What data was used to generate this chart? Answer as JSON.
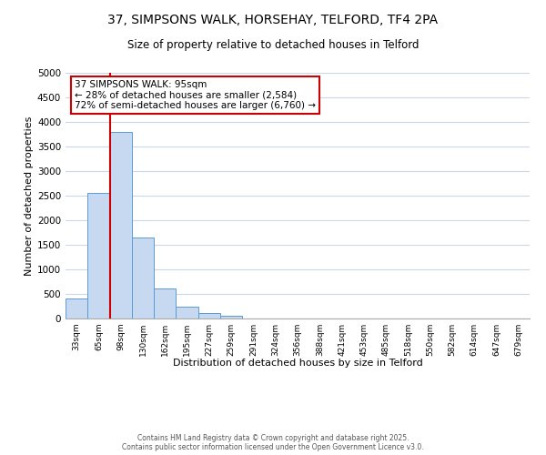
{
  "title": "37, SIMPSONS WALK, HORSEHAY, TELFORD, TF4 2PA",
  "subtitle": "Size of property relative to detached houses in Telford",
  "xlabel": "Distribution of detached houses by size in Telford",
  "ylabel": "Number of detached properties",
  "bar_values": [
    400,
    2560,
    3800,
    1650,
    620,
    250,
    110,
    50,
    0,
    0,
    0,
    0,
    0,
    0,
    0,
    0,
    0,
    0,
    0,
    0,
    0
  ],
  "bin_labels": [
    "33sqm",
    "65sqm",
    "98sqm",
    "130sqm",
    "162sqm",
    "195sqm",
    "227sqm",
    "259sqm",
    "291sqm",
    "324sqm",
    "356sqm",
    "388sqm",
    "421sqm",
    "453sqm",
    "485sqm",
    "518sqm",
    "550sqm",
    "582sqm",
    "614sqm",
    "647sqm",
    "679sqm"
  ],
  "bar_color": "#c6d9f0",
  "bar_edge_color": "#5b9bd5",
  "vline_color": "#cc0000",
  "annotation_text": "37 SIMPSONS WALK: 95sqm\n← 28% of detached houses are smaller (2,584)\n72% of semi-detached houses are larger (6,760) →",
  "annotation_box_color": "#cc0000",
  "ylim": [
    0,
    5000
  ],
  "yticks": [
    0,
    500,
    1000,
    1500,
    2000,
    2500,
    3000,
    3500,
    4000,
    4500,
    5000
  ],
  "bg_color": "#ffffff",
  "grid_color": "#c8d8e8",
  "footer_line1": "Contains HM Land Registry data © Crown copyright and database right 2025.",
  "footer_line2": "Contains public sector information licensed under the Open Government Licence v3.0."
}
